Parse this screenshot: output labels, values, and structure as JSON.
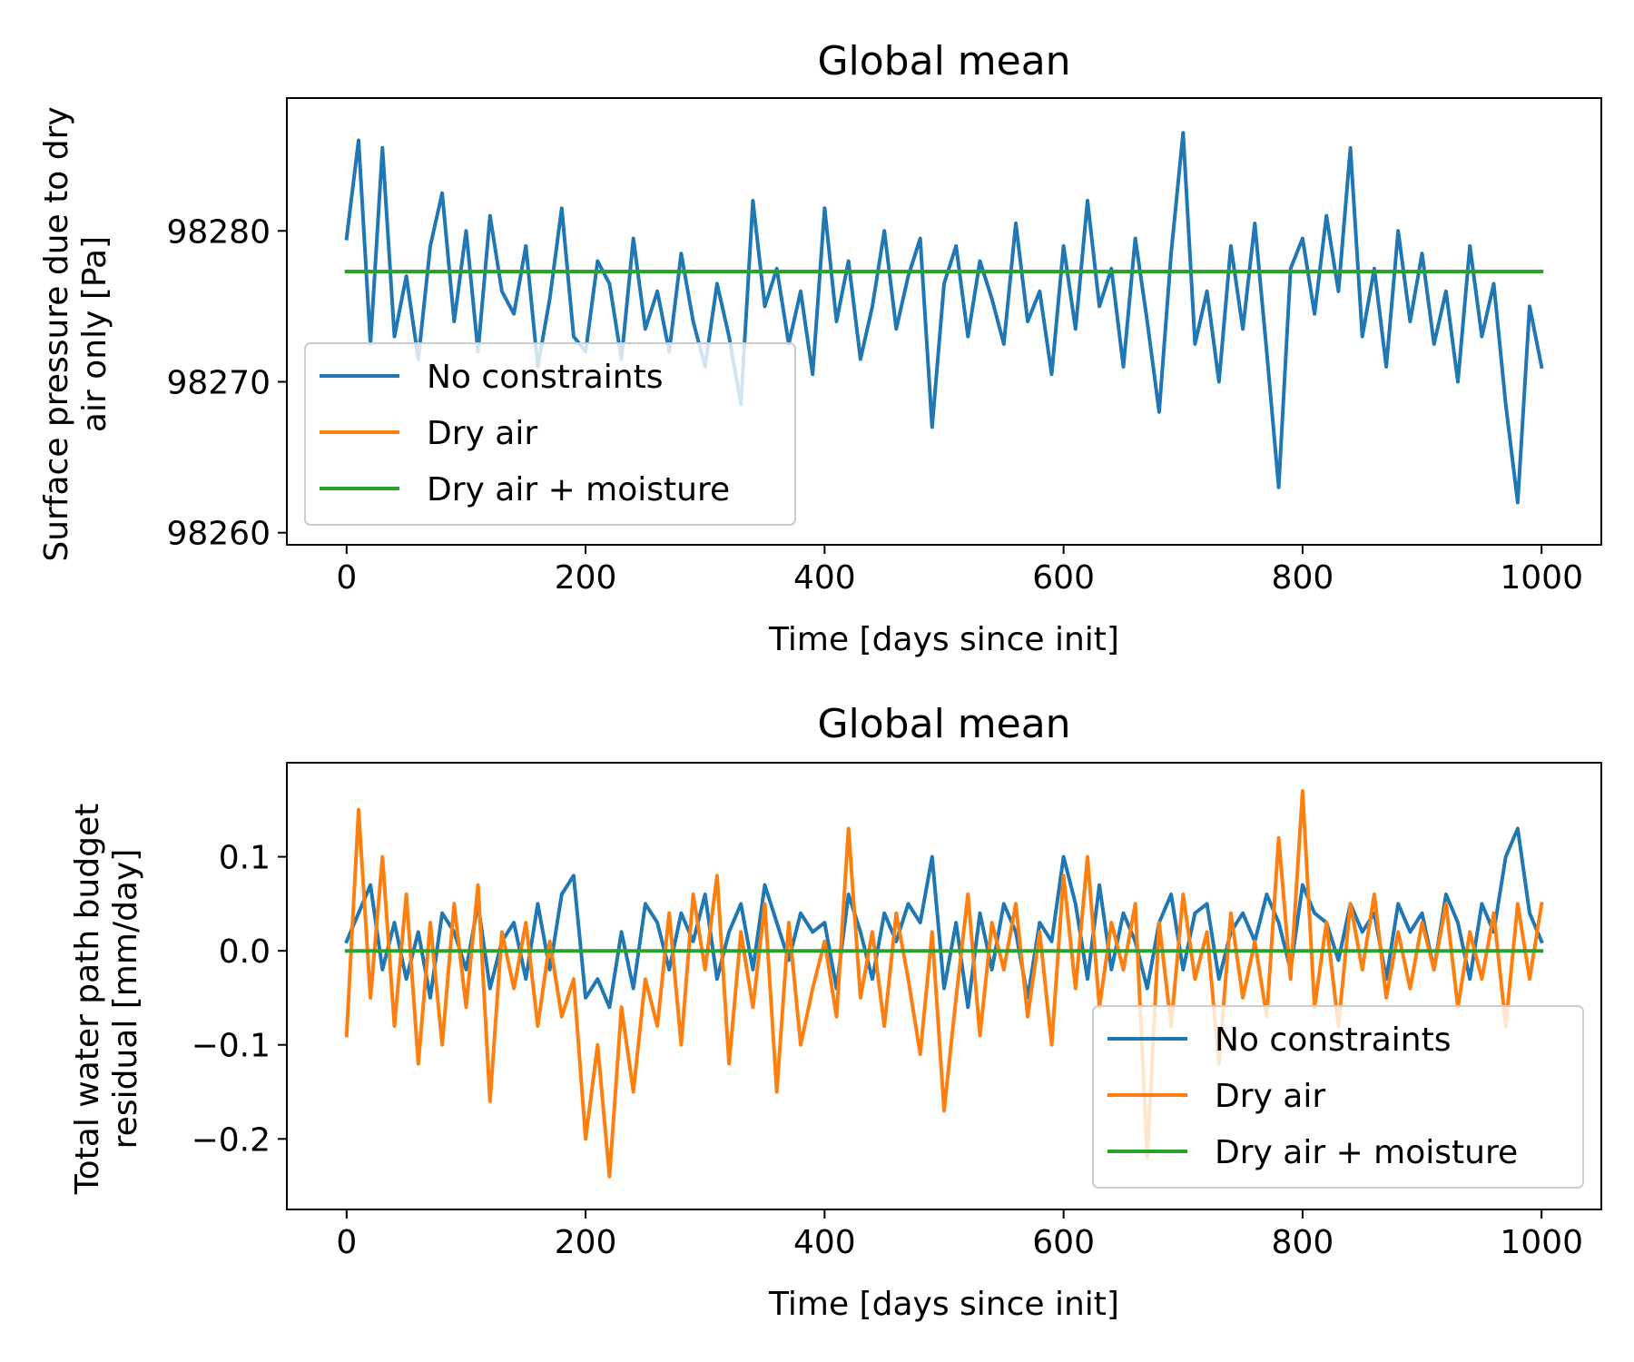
{
  "chart_data": [
    {
      "type": "line",
      "title": "Global mean",
      "xlabel": "Time [days since init]",
      "ylabel_line1": "Surface pressure due to dry",
      "ylabel_line2": "air only [Pa]",
      "xlim": [
        -50,
        1050
      ],
      "ylim": [
        98259.2,
        98288.8
      ],
      "xticks": [
        0,
        200,
        400,
        600,
        800,
        1000
      ],
      "yticks": [
        98260,
        98270,
        98280
      ],
      "grid": false,
      "legend_position": "lower-left",
      "series": [
        {
          "name": "No constraints",
          "color": "#1f77b4",
          "x": [
            0,
            10,
            20,
            30,
            40,
            50,
            60,
            70,
            80,
            90,
            100,
            110,
            120,
            130,
            140,
            150,
            160,
            170,
            180,
            190,
            200,
            210,
            220,
            230,
            240,
            250,
            260,
            270,
            280,
            290,
            300,
            310,
            320,
            330,
            340,
            350,
            360,
            370,
            380,
            390,
            400,
            410,
            420,
            430,
            440,
            450,
            460,
            470,
            480,
            490,
            500,
            510,
            520,
            530,
            540,
            550,
            560,
            570,
            580,
            590,
            600,
            610,
            620,
            630,
            640,
            650,
            660,
            670,
            680,
            690,
            700,
            710,
            720,
            730,
            740,
            750,
            760,
            770,
            780,
            790,
            800,
            810,
            820,
            830,
            840,
            850,
            860,
            870,
            880,
            890,
            900,
            910,
            920,
            930,
            940,
            950,
            960,
            970,
            980,
            990,
            1000
          ],
          "y": [
            98279.5,
            98286.0,
            98272.5,
            98285.5,
            98273.0,
            98277.0,
            98271.5,
            98279.0,
            98282.5,
            98274.0,
            98280.0,
            98272.0,
            98281.0,
            98276.0,
            98274.5,
            98279.0,
            98271.0,
            98275.5,
            98281.5,
            98273.0,
            98272.0,
            98278.0,
            98276.5,
            98271.5,
            98279.5,
            98273.5,
            98276.0,
            98272.0,
            98278.5,
            98274.0,
            98271.0,
            98276.5,
            98273.0,
            98268.5,
            98282.0,
            98275.0,
            98277.5,
            98272.5,
            98276.0,
            98270.5,
            98281.5,
            98274.0,
            98278.0,
            98271.5,
            98275.0,
            98280.0,
            98273.5,
            98277.0,
            98279.5,
            98267.0,
            98276.5,
            98279.0,
            98273.0,
            98278.0,
            98275.5,
            98272.5,
            98280.5,
            98274.0,
            98276.0,
            98270.5,
            98279.0,
            98273.5,
            98282.0,
            98275.0,
            98277.5,
            98271.0,
            98279.5,
            98274.0,
            98268.0,
            98278.5,
            98286.5,
            98272.5,
            98276.0,
            98270.0,
            98279.0,
            98273.5,
            98280.5,
            98272.0,
            98263.0,
            98277.5,
            98279.5,
            98274.5,
            98281.0,
            98276.0,
            98285.5,
            98273.0,
            98277.5,
            98271.0,
            98280.0,
            98274.0,
            98278.5,
            98272.5,
            98276.0,
            98270.0,
            98279.0,
            98273.0,
            98276.5,
            98268.5,
            98262.0,
            98275.0,
            98271.0
          ]
        },
        {
          "name": "Dry air",
          "color": "#ff7f0e",
          "x": [
            0,
            1000
          ],
          "y": [
            98277.3,
            98277.3
          ]
        },
        {
          "name": "Dry air + moisture",
          "color": "#2ca02c",
          "x": [
            0,
            1000
          ],
          "y": [
            98277.3,
            98277.3
          ]
        }
      ]
    },
    {
      "type": "line",
      "title": "Global mean",
      "xlabel": "Time [days since init]",
      "ylabel_line1": "Total water path budget",
      "ylabel_line2": "residual [mm/day]",
      "xlim": [
        -50,
        1050
      ],
      "ylim": [
        -0.275,
        0.2
      ],
      "xticks": [
        0,
        200,
        400,
        600,
        800,
        1000
      ],
      "yticks": [
        -0.2,
        -0.1,
        0.0,
        0.1
      ],
      "ytick_labels": [
        "−0.2",
        "−0.1",
        "0.0",
        "0.1"
      ],
      "grid": false,
      "legend_position": "lower-right",
      "series": [
        {
          "name": "No constraints",
          "color": "#1f77b4",
          "x": [
            0,
            10,
            20,
            30,
            40,
            50,
            60,
            70,
            80,
            90,
            100,
            110,
            120,
            130,
            140,
            150,
            160,
            170,
            180,
            190,
            200,
            210,
            220,
            230,
            240,
            250,
            260,
            270,
            280,
            290,
            300,
            310,
            320,
            330,
            340,
            350,
            360,
            370,
            380,
            390,
            400,
            410,
            420,
            430,
            440,
            450,
            460,
            470,
            480,
            490,
            500,
            510,
            520,
            530,
            540,
            550,
            560,
            570,
            580,
            590,
            600,
            610,
            620,
            630,
            640,
            650,
            660,
            670,
            680,
            690,
            700,
            710,
            720,
            730,
            740,
            750,
            760,
            770,
            780,
            790,
            800,
            810,
            820,
            830,
            840,
            850,
            860,
            870,
            880,
            890,
            900,
            910,
            920,
            930,
            940,
            950,
            960,
            970,
            980,
            990,
            1000
          ],
          "y": [
            0.01,
            0.04,
            0.07,
            -0.02,
            0.03,
            -0.03,
            0.02,
            -0.05,
            0.04,
            0.02,
            -0.02,
            0.05,
            -0.04,
            0.01,
            0.03,
            -0.03,
            0.05,
            -0.02,
            0.06,
            0.08,
            -0.05,
            -0.03,
            -0.06,
            0.02,
            -0.04,
            0.05,
            0.03,
            -0.02,
            0.04,
            0.01,
            0.06,
            -0.03,
            0.02,
            0.05,
            -0.02,
            0.07,
            0.03,
            -0.01,
            0.04,
            0.02,
            0.03,
            -0.04,
            0.06,
            0.02,
            -0.03,
            0.04,
            0.01,
            0.05,
            0.03,
            0.1,
            -0.04,
            0.03,
            -0.06,
            0.04,
            -0.02,
            0.05,
            0.02,
            -0.05,
            0.03,
            0.01,
            0.1,
            0.05,
            -0.03,
            0.07,
            -0.02,
            0.04,
            0.01,
            -0.04,
            0.03,
            0.06,
            -0.02,
            0.04,
            0.05,
            -0.03,
            0.02,
            0.04,
            0.01,
            0.06,
            0.03,
            -0.02,
            0.07,
            0.04,
            0.03,
            -0.01,
            0.05,
            0.02,
            0.04,
            -0.03,
            0.05,
            0.02,
            0.04,
            -0.02,
            0.06,
            0.03,
            -0.03,
            0.05,
            0.02,
            0.1,
            0.13,
            0.04,
            0.01
          ]
        },
        {
          "name": "Dry air",
          "color": "#ff7f0e",
          "x": [
            0,
            10,
            20,
            30,
            40,
            50,
            60,
            70,
            80,
            90,
            100,
            110,
            120,
            130,
            140,
            150,
            160,
            170,
            180,
            190,
            200,
            210,
            220,
            230,
            240,
            250,
            260,
            270,
            280,
            290,
            300,
            310,
            320,
            330,
            340,
            350,
            360,
            370,
            380,
            390,
            400,
            410,
            420,
            430,
            440,
            450,
            460,
            470,
            480,
            490,
            500,
            510,
            520,
            530,
            540,
            550,
            560,
            570,
            580,
            590,
            600,
            610,
            620,
            630,
            640,
            650,
            660,
            670,
            680,
            690,
            700,
            710,
            720,
            730,
            740,
            750,
            760,
            770,
            780,
            790,
            800,
            810,
            820,
            830,
            840,
            850,
            860,
            870,
            880,
            890,
            900,
            910,
            920,
            930,
            940,
            950,
            960,
            970,
            980,
            990,
            1000
          ],
          "y": [
            -0.09,
            0.15,
            -0.05,
            0.1,
            -0.08,
            0.06,
            -0.12,
            0.03,
            -0.1,
            0.05,
            -0.06,
            0.07,
            -0.16,
            0.02,
            -0.04,
            0.03,
            -0.08,
            0.01,
            -0.07,
            -0.03,
            -0.2,
            -0.1,
            -0.24,
            -0.06,
            -0.15,
            -0.03,
            -0.08,
            0.04,
            -0.1,
            0.06,
            -0.02,
            0.08,
            -0.12,
            0.02,
            -0.06,
            0.05,
            -0.15,
            0.03,
            -0.1,
            -0.04,
            0.01,
            -0.07,
            0.13,
            -0.05,
            0.02,
            -0.08,
            0.04,
            -0.03,
            -0.11,
            0.02,
            -0.17,
            -0.05,
            0.06,
            -0.09,
            0.03,
            -0.02,
            0.05,
            -0.07,
            0.02,
            -0.1,
            0.08,
            -0.04,
            0.1,
            -0.06,
            0.03,
            -0.02,
            0.05,
            -0.22,
            0.03,
            -0.08,
            0.06,
            -0.03,
            0.02,
            -0.12,
            0.04,
            -0.05,
            0.01,
            -0.07,
            0.12,
            -0.03,
            0.17,
            -0.06,
            0.03,
            -0.08,
            0.05,
            -0.02,
            0.06,
            -0.05,
            0.02,
            -0.04,
            0.03,
            -0.02,
            0.05,
            -0.06,
            0.02,
            -0.03,
            0.04,
            -0.08,
            0.05,
            -0.03,
            0.05
          ]
        },
        {
          "name": "Dry air + moisture",
          "color": "#2ca02c",
          "x": [
            0,
            1000
          ],
          "y": [
            0.0,
            0.0
          ]
        }
      ]
    }
  ]
}
